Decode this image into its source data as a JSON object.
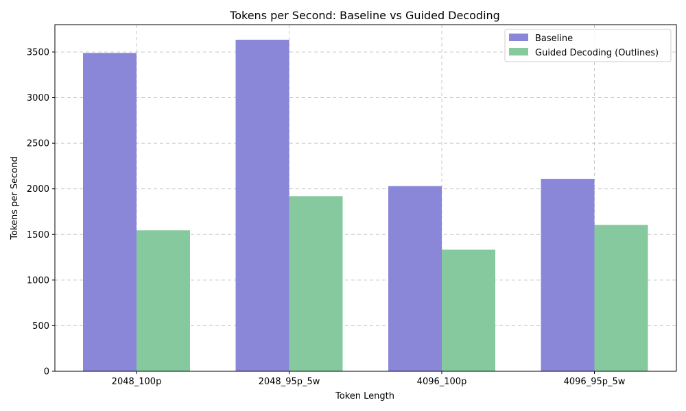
{
  "chart_data": {
    "type": "bar",
    "title": "Tokens per Second: Baseline vs Guided Decoding",
    "xlabel": "Token Length",
    "ylabel": "Tokens per Second",
    "categories": [
      "2048_100p",
      "2048_95p_5w",
      "4096_100p",
      "4096_95p_5w"
    ],
    "series": [
      {
        "name": "Baseline",
        "color": "#8a87d9",
        "values": [
          3490,
          3635,
          2030,
          2110
        ]
      },
      {
        "name": "Guided Decoding (Outlines)",
        "color": "#86c99e",
        "values": [
          1545,
          1920,
          1333,
          1605
        ]
      }
    ],
    "ylim": [
      0,
      3800
    ],
    "yticks": [
      0,
      500,
      1000,
      1500,
      2000,
      2500,
      3000,
      3500
    ],
    "grid": true,
    "legend_position": "top-right"
  }
}
